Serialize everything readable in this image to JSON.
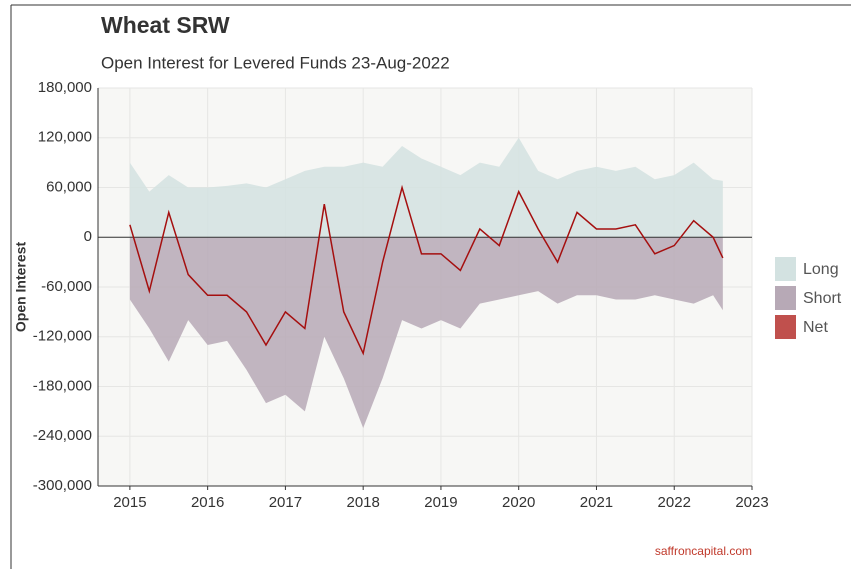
{
  "chart_data": {
    "type": "area",
    "title": "Wheat SRW",
    "subtitle": "Open Interest for Levered Funds 23-Aug-2022",
    "y_label": "Open Interest",
    "source": "saffroncapital.com",
    "x": [
      2015.0,
      2015.25,
      2015.5,
      2015.75,
      2016.0,
      2016.25,
      2016.5,
      2016.75,
      2017.0,
      2017.25,
      2017.5,
      2017.75,
      2018.0,
      2018.25,
      2018.5,
      2018.75,
      2019.0,
      2019.25,
      2019.5,
      2019.75,
      2020.0,
      2020.25,
      2020.5,
      2020.75,
      2021.0,
      2021.25,
      2021.5,
      2021.75,
      2022.0,
      2022.25,
      2022.5,
      2022.625
    ],
    "series": [
      {
        "name": "Long",
        "color": "#d3e2e1",
        "values": [
          90000,
          55000,
          75000,
          60000,
          60000,
          62000,
          65000,
          60000,
          70000,
          80000,
          85000,
          85000,
          90000,
          85000,
          110000,
          95000,
          85000,
          75000,
          90000,
          85000,
          120000,
          80000,
          70000,
          80000,
          85000,
          80000,
          85000,
          70000,
          75000,
          90000,
          70000,
          68000
        ]
      },
      {
        "name": "Short",
        "color": "#b7a9b6",
        "values": [
          -75000,
          -110000,
          -150000,
          -100000,
          -130000,
          -125000,
          -160000,
          -200000,
          -190000,
          -210000,
          -120000,
          -170000,
          -230000,
          -170000,
          -100000,
          -110000,
          -100000,
          -110000,
          -80000,
          -75000,
          -70000,
          -65000,
          -80000,
          -70000,
          -70000,
          -75000,
          -75000,
          -70000,
          -75000,
          -80000,
          -70000,
          -88000
        ]
      },
      {
        "name": "Net",
        "color": "#a50f0f",
        "legend_color": "#c0504d",
        "values": [
          15000,
          -65000,
          30000,
          -45000,
          -70000,
          -70000,
          -90000,
          -130000,
          -90000,
          -110000,
          40000,
          -90000,
          -140000,
          -30000,
          60000,
          -20000,
          -20000,
          -40000,
          10000,
          -10000,
          55000,
          10000,
          -30000,
          30000,
          10000,
          10000,
          15000,
          -20000,
          -10000,
          20000,
          0,
          -25000
        ]
      }
    ],
    "xlim": [
      2014.59,
      2023.0
    ],
    "xticks": [
      2015,
      2016,
      2017,
      2018,
      2019,
      2020,
      2021,
      2022,
      2023
    ],
    "ylim": [
      -300000,
      180000
    ],
    "yticks": [
      {
        "value": -300000,
        "label": "-300,000"
      },
      {
        "value": -240000,
        "label": "-240,000"
      },
      {
        "value": -180000,
        "label": "-180,000"
      },
      {
        "value": -120000,
        "label": "-120,000"
      },
      {
        "value": -60000,
        "label": "-60,000"
      },
      0,
      {
        "value": 60000,
        "label": "60,000"
      },
      {
        "value": 120000,
        "label": "120,000"
      },
      {
        "value": 180000,
        "label": "180,000"
      }
    ],
    "grid": true,
    "legend": "right"
  }
}
